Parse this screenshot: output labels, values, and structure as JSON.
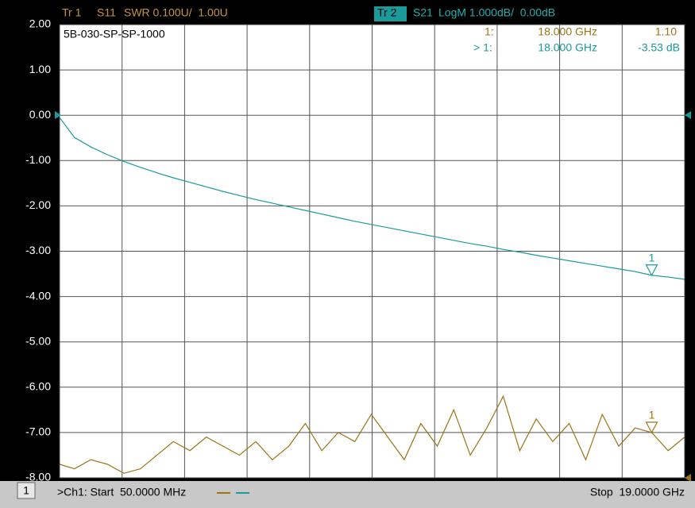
{
  "chart_data": {
    "type": "line",
    "header": {
      "trace1": {
        "tag": "Tr 1",
        "param": "S11",
        "format": "SWR 0.100U/  1.00U"
      },
      "trace2": {
        "tag": "Tr 2",
        "param": "S21",
        "format": "LogM 1.000dB/  0.00dB"
      }
    },
    "plot_label": "5B-030-SP-SP-1000",
    "readout": [
      {
        "marker": "1:",
        "freq": "18.000 GHz",
        "value": "1.10"
      },
      {
        "marker": "> 1:",
        "freq": "18.000 GHz",
        "value": "-3.53 dB"
      }
    ],
    "footer": {
      "channel": "1",
      "start": ">Ch1: Start  50.0000 MHz",
      "stop": "Stop  19.0000 GHz"
    },
    "markers": [
      {
        "label": "1",
        "x": 18,
        "series": 0,
        "index": 36
      },
      {
        "label": "1",
        "x": 18,
        "series": 1,
        "index": 36
      }
    ],
    "x": [
      0.05,
      0.5,
      1,
      1.5,
      2,
      2.5,
      3,
      3.5,
      4,
      4.5,
      5,
      5.5,
      6,
      6.5,
      7,
      7.5,
      8,
      8.5,
      9,
      9.5,
      10,
      10.5,
      11,
      11.5,
      12,
      12.5,
      13,
      13.5,
      14,
      14.5,
      15,
      15.5,
      16,
      16.5,
      17,
      17.5,
      18,
      18.5,
      19
    ],
    "xlim": [
      0.05,
      19
    ],
    "ylim": [
      -8,
      2
    ],
    "yticks": [
      {
        "value": 2,
        "label": "2.00"
      },
      {
        "value": 1,
        "label": "1.00"
      },
      {
        "value": 0,
        "label": "0.00"
      },
      {
        "value": -1,
        "label": "-1.00"
      },
      {
        "value": -2,
        "label": "-2.00"
      },
      {
        "value": -3,
        "label": "-3.00"
      },
      {
        "value": -4,
        "label": "-4.00"
      },
      {
        "value": -5,
        "label": "-5.00"
      },
      {
        "value": -6,
        "label": "-6.00"
      },
      {
        "value": -7,
        "label": "-7.00"
      },
      {
        "value": -8,
        "label": "-8.00"
      }
    ],
    "y2lim": [
      1.0,
      2.0
    ],
    "grid": true,
    "series": [
      {
        "name": "S11",
        "color": "#9c7418",
        "axis": "y2",
        "values": [
          1.03,
          1.02,
          1.04,
          1.03,
          1.01,
          1.02,
          1.05,
          1.08,
          1.06,
          1.09,
          1.07,
          1.05,
          1.08,
          1.04,
          1.07,
          1.12,
          1.06,
          1.1,
          1.08,
          1.14,
          1.09,
          1.04,
          1.12,
          1.07,
          1.15,
          1.05,
          1.11,
          1.18,
          1.06,
          1.13,
          1.08,
          1.12,
          1.04,
          1.14,
          1.07,
          1.11,
          1.1,
          1.06,
          1.09
        ]
      },
      {
        "name": "S21",
        "color": "#1a9a9a",
        "values": [
          -0.05,
          -0.49,
          -0.7,
          -0.87,
          -1.02,
          -1.15,
          -1.27,
          -1.38,
          -1.48,
          -1.58,
          -1.68,
          -1.77,
          -1.86,
          -1.94,
          -2.02,
          -2.1,
          -2.18,
          -2.26,
          -2.34,
          -2.41,
          -2.48,
          -2.55,
          -2.62,
          -2.69,
          -2.76,
          -2.83,
          -2.89,
          -2.96,
          -3.02,
          -3.09,
          -3.15,
          -3.21,
          -3.27,
          -3.33,
          -3.39,
          -3.45,
          -3.53,
          -3.57,
          -3.62
        ]
      }
    ]
  }
}
